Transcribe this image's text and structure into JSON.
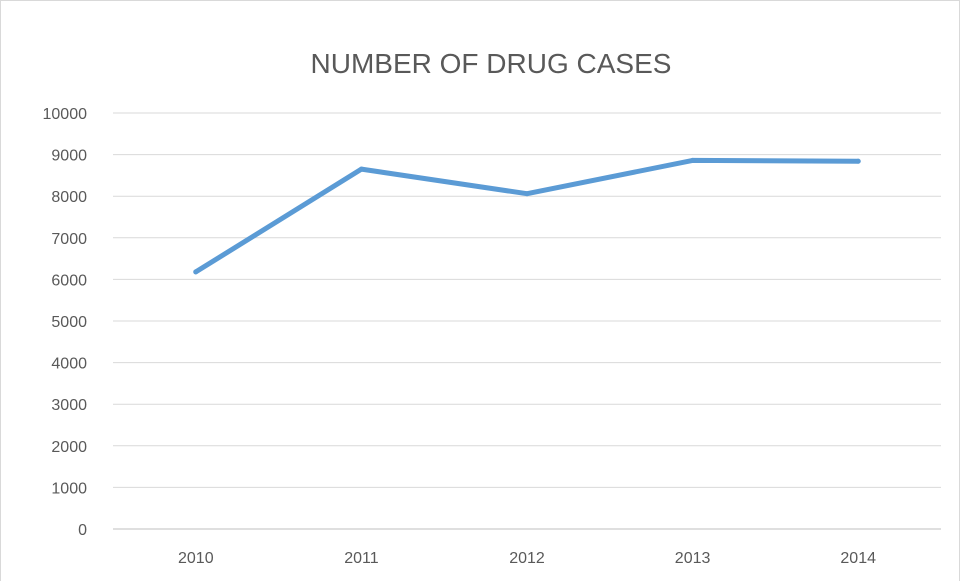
{
  "chart_data": {
    "type": "line",
    "title": "NUMBER OF DRUG CASES",
    "xlabel": "",
    "ylabel": "",
    "categories": [
      "2010",
      "2011",
      "2012",
      "2013",
      "2014"
    ],
    "series": [
      {
        "values": [
          6180,
          8650,
          8060,
          8860,
          8840
        ]
      }
    ],
    "ylim": [
      0,
      10000
    ],
    "y_ticks": [
      "0",
      "1000",
      "2000",
      "3000",
      "4000",
      "5000",
      "6000",
      "7000",
      "8000",
      "9000",
      "10000"
    ],
    "grid": true,
    "legend": "none",
    "colors": {
      "series": "#5b9bd5",
      "grid": "#d9d9d9",
      "text": "#595959"
    }
  }
}
